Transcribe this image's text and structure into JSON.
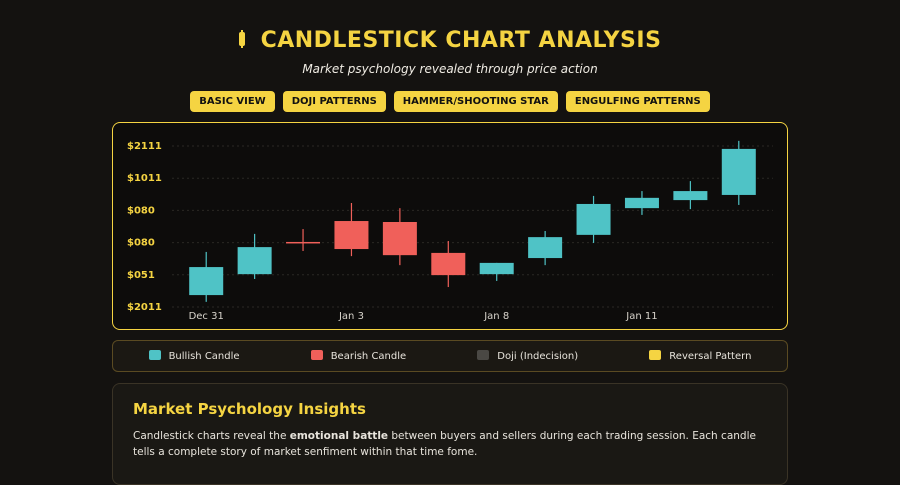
{
  "header": {
    "title": "CANDLESTICK CHART ANALYSIS",
    "subtitle": "Market psychology revealed through price action"
  },
  "tabs": [
    "BASIC VIEW",
    "DOJI PATTERNS",
    "HAMMER/SHOOTING STAR",
    "ENGULFING PATTERNS"
  ],
  "chart_data": {
    "type": "candlestick",
    "categories": [
      "Dec 31",
      null,
      null,
      "Jan 3",
      null,
      null,
      "Jan 8",
      null,
      null,
      "Jan 11",
      null,
      null
    ],
    "open": [
      0.37,
      1.02,
      2.02,
      2.67,
      2.64,
      1.68,
      1.02,
      1.52,
      2.24,
      3.07,
      3.32,
      3.48
    ],
    "high": [
      1.71,
      2.27,
      2.42,
      3.23,
      3.07,
      2.05,
      1.37,
      2.36,
      3.45,
      3.6,
      3.91,
      5.16
    ],
    "low": [
      0.16,
      0.87,
      1.74,
      1.58,
      1.3,
      0.62,
      0.81,
      1.3,
      1.99,
      2.86,
      3.04,
      3.17
    ],
    "close": [
      1.24,
      1.86,
      2.0,
      1.8,
      1.61,
      0.99,
      1.37,
      2.17,
      3.2,
      3.39,
      3.6,
      4.91
    ],
    "colors": {
      "up": "#4fc3c6",
      "down": "#f0605a"
    },
    "ylim": [
      0,
      5
    ],
    "yticks": [
      {
        "value": 0,
        "label": "$2011"
      },
      {
        "value": 1,
        "label": "$051"
      },
      {
        "value": 2,
        "label": "$080"
      },
      {
        "value": 3,
        "label": "$080"
      },
      {
        "value": 4,
        "label": "$1011"
      },
      {
        "value": 5,
        "label": "$2111"
      }
    ],
    "grid": true
  },
  "legend": [
    {
      "label": "Bullish Candle",
      "color": "#4fc3c6"
    },
    {
      "label": "Bearish Candle",
      "color": "#f0605a"
    },
    {
      "label": "Doji (Indecision)",
      "color": "#4a4844"
    },
    {
      "label": "Reversal Pattern",
      "color": "#f5d442"
    }
  ],
  "insights": {
    "title": "Market Psychology Insights",
    "text_before": "Candlestick charts reveal the",
    "text_bold": "emotional battle",
    "text_after": "between buyers and sellers during each trading session. Each candle tells a complete story of market senfiment within that time fome."
  }
}
